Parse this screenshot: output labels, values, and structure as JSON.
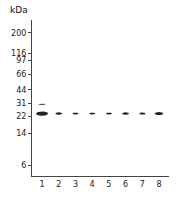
{
  "chart_data": {
    "type": "gel",
    "ylabel": "kDa",
    "categories": [
      "1",
      "2",
      "3",
      "4",
      "5",
      "6",
      "7",
      "8"
    ],
    "log": "y",
    "ylim": [
      4.5,
      280
    ],
    "yticks": [
      200,
      116,
      97,
      66,
      44,
      31,
      22,
      14,
      6
    ],
    "grid": false,
    "color": "#111111",
    "series": [
      {
        "values": [
          23.5,
          23.5,
          23.5,
          23.5,
          23.5,
          23.5,
          23.5,
          23.5
        ],
        "widths": [
          0.72,
          0.42,
          0.36,
          0.36,
          0.36,
          0.42,
          0.38,
          0.52
        ],
        "heights": [
          2.8,
          1.6,
          1.3,
          1.3,
          1.3,
          1.6,
          1.4,
          2.0
        ]
      },
      {
        "values": [
          30.0,
          null,
          null,
          null,
          null,
          null,
          null,
          null
        ],
        "widths": [
          0.44,
          0,
          0,
          0,
          0,
          0,
          0,
          0
        ],
        "heights": [
          1.0,
          0,
          0,
          0,
          0,
          0,
          0,
          0
        ]
      }
    ]
  }
}
